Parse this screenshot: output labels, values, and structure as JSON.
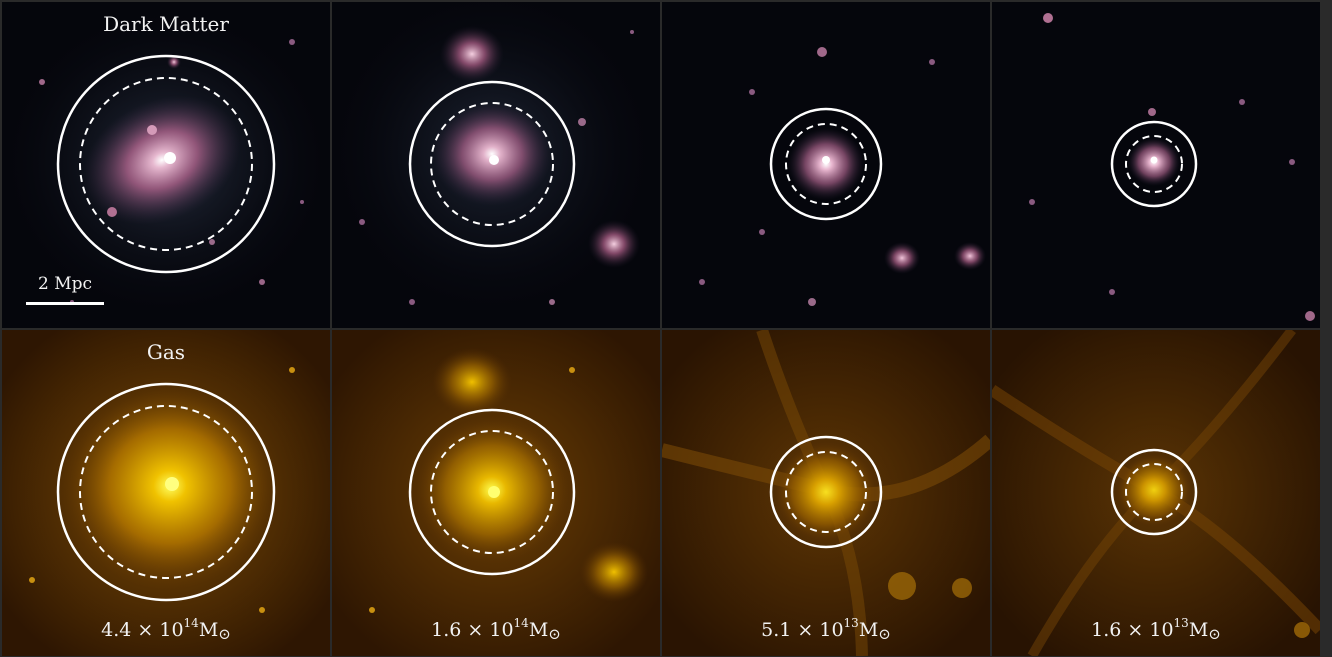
{
  "panels": {
    "row_titles": [
      "Dark Matter",
      "Gas"
    ],
    "scale_bar": "2 Mpc",
    "masses": [
      {
        "coef": "4.4",
        "exp": "14"
      },
      {
        "coef": "1.6",
        "exp": "14"
      },
      {
        "coef": "5.1",
        "exp": "13"
      },
      {
        "coef": "1.6",
        "exp": "13"
      }
    ],
    "mass_times": "×",
    "mass_base": "10",
    "mass_unit": "M",
    "mass_sub": "⊙"
  },
  "colors": {
    "dark_matter_bg": "#05060c",
    "dark_matter_halo": "#c07a9e",
    "gas_bg": "#3a1e02",
    "gas_halo": "#ffd000",
    "circle": "#ffffff"
  }
}
